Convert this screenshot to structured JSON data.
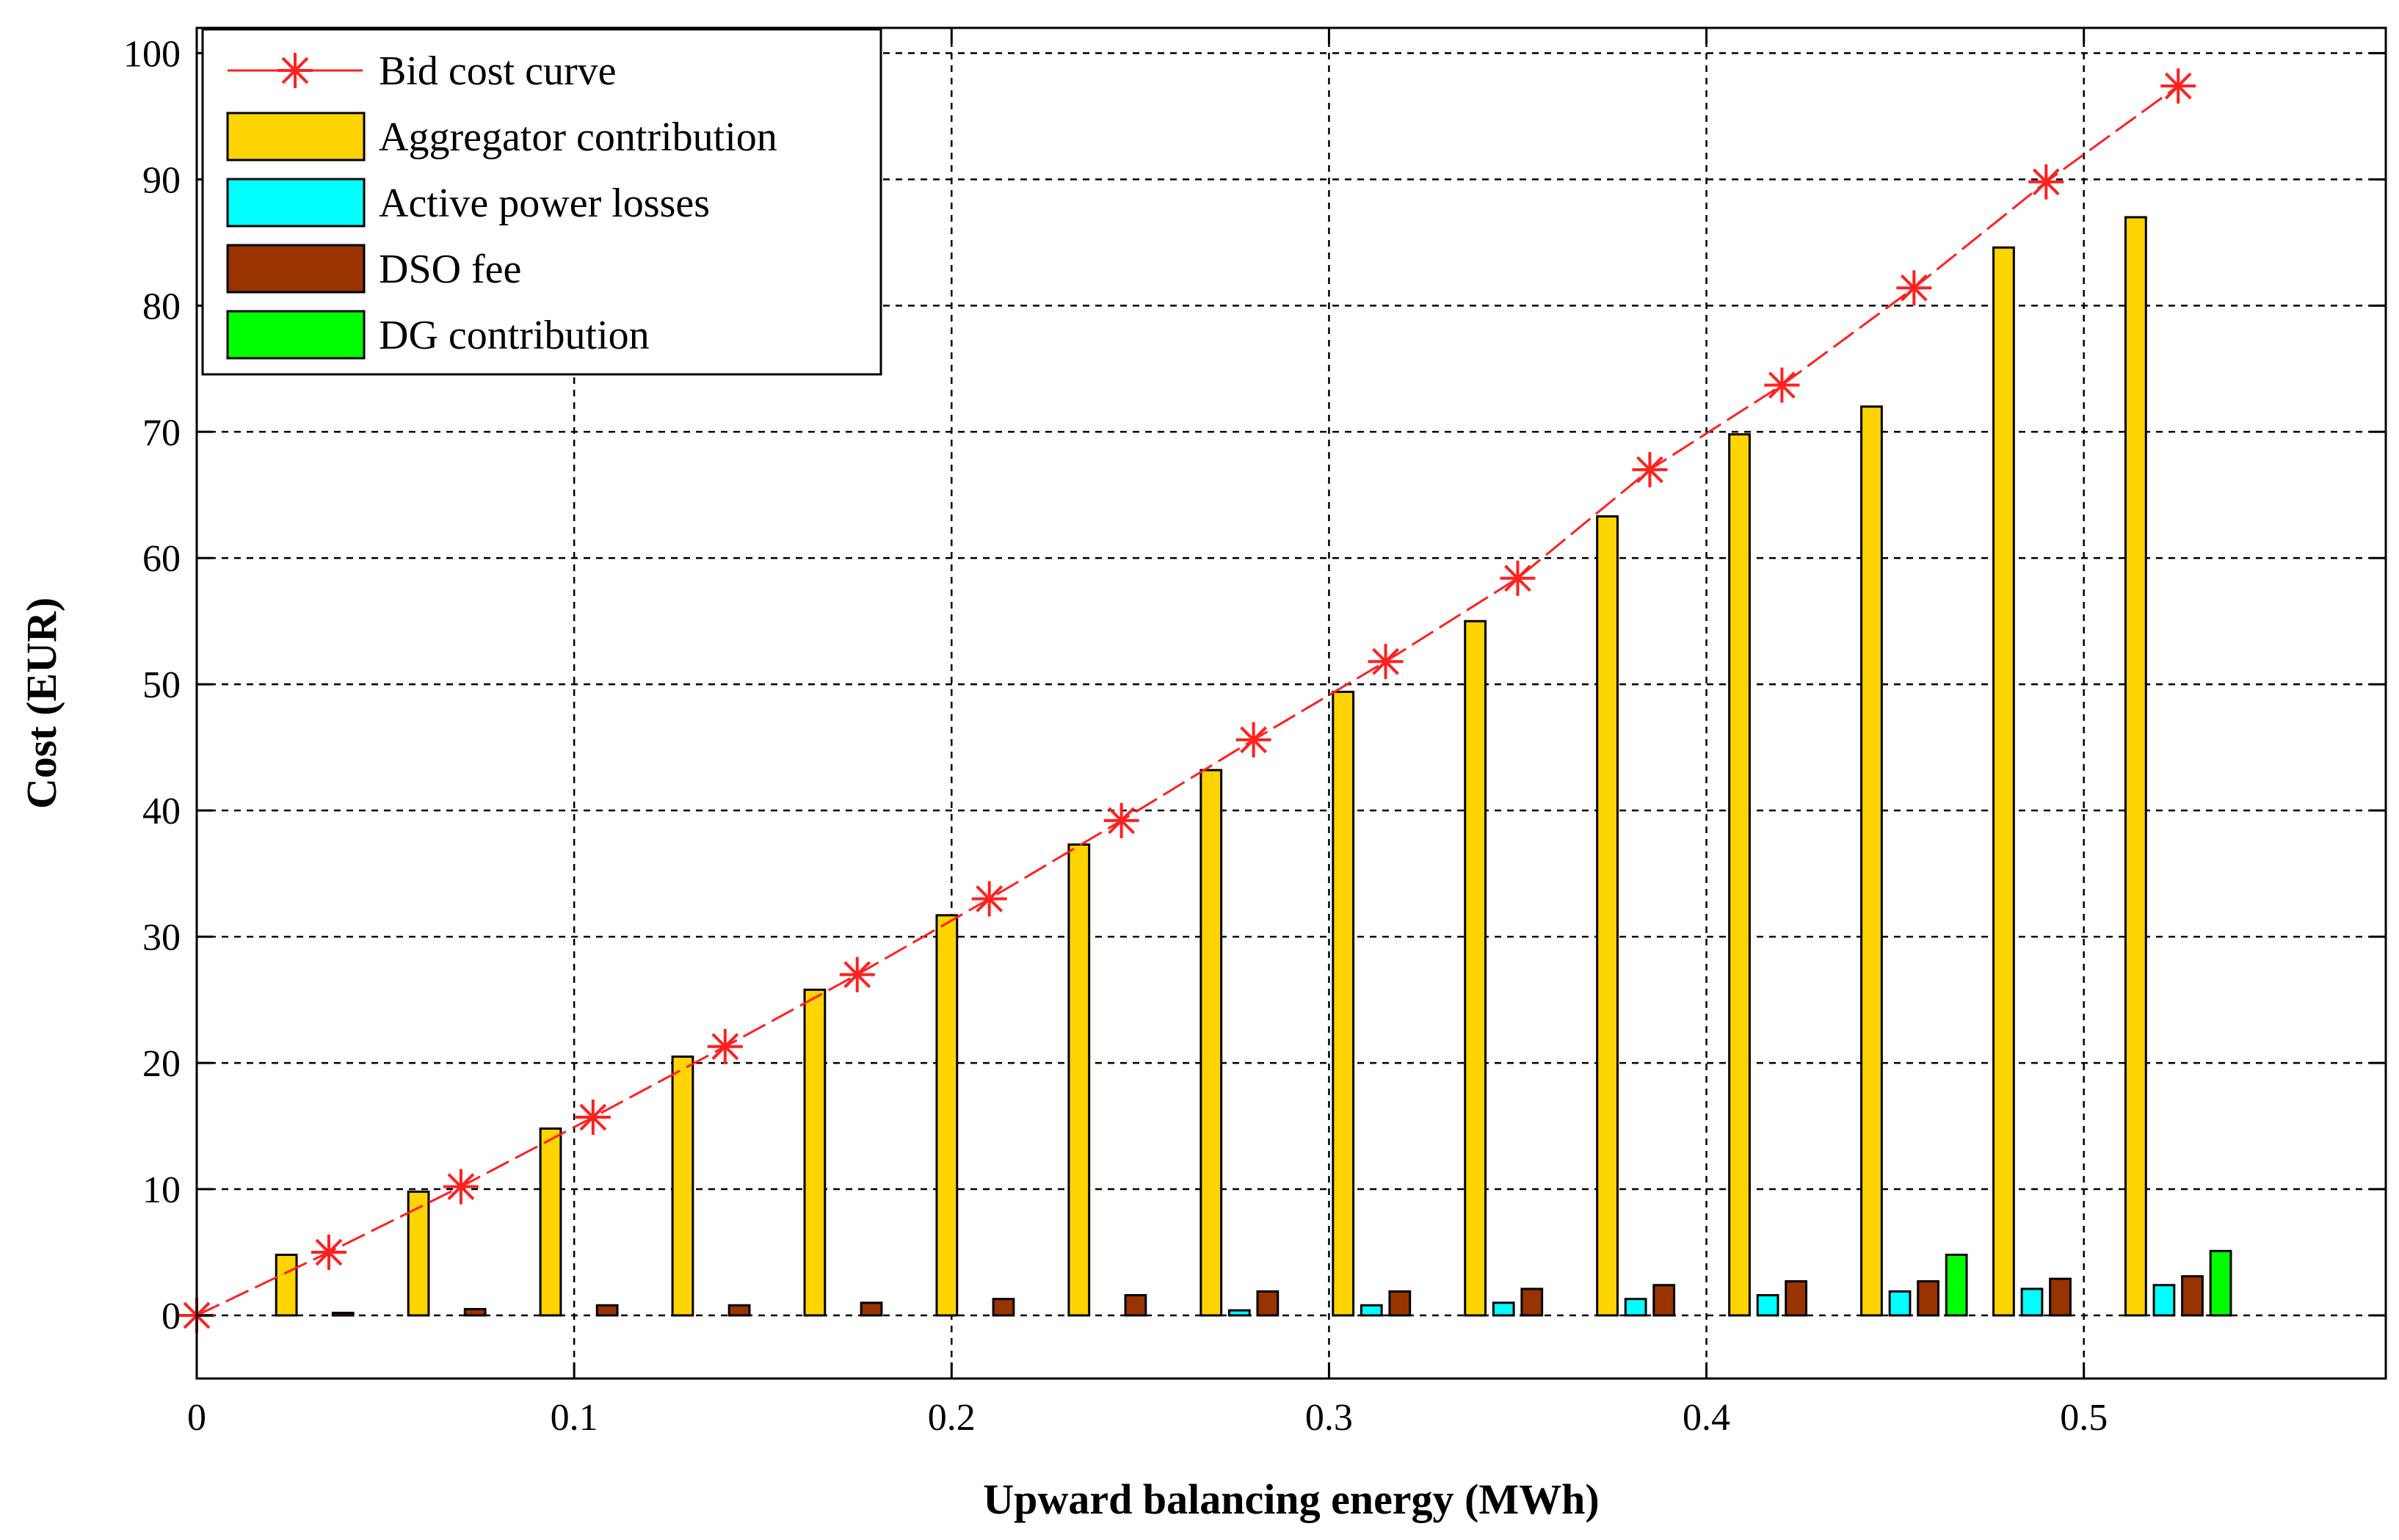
{
  "chart_data": {
    "type": "bar",
    "title": "",
    "xlabel": "Upward balancing energy (MWh)",
    "ylabel": "Cost (EUR)",
    "xlim": [
      0,
      0.58
    ],
    "ylim": [
      -5,
      102
    ],
    "x_ticks": [
      0,
      0.1,
      0.2,
      0.3,
      0.4,
      0.5
    ],
    "x_tick_labels": [
      "0",
      "0.1",
      "0.2",
      "0.3",
      "0.4",
      "0.5"
    ],
    "y_ticks": [
      0,
      10,
      20,
      30,
      40,
      50,
      60,
      70,
      80,
      90,
      100
    ],
    "y_tick_labels": [
      "0",
      "10",
      "20",
      "30",
      "40",
      "50",
      "60",
      "70",
      "80",
      "90",
      "100"
    ],
    "grid": true,
    "legend_position": "top-left",
    "x": [
      0.035,
      0.07,
      0.105,
      0.14,
      0.175,
      0.21,
      0.245,
      0.28,
      0.315,
      0.35,
      0.385,
      0.42,
      0.455,
      0.49,
      0.525
    ],
    "bar_group_width": 0.03,
    "line_series": {
      "name": "Bid cost curve",
      "color": "#ff2020",
      "marker": "asterisk",
      "x": [
        0,
        0.035,
        0.07,
        0.105,
        0.14,
        0.175,
        0.21,
        0.245,
        0.28,
        0.315,
        0.35,
        0.385,
        0.42,
        0.455,
        0.49,
        0.525
      ],
      "y": [
        0,
        5,
        10.2,
        15.7,
        21.3,
        27,
        33,
        39.2,
        45.6,
        51.8,
        58.4,
        67,
        73.7,
        81.4,
        89.8,
        97.4
      ]
    },
    "series": [
      {
        "name": "Aggregator contribution",
        "color": "#ffd400",
        "values": [
          4.8,
          9.8,
          14.8,
          20.5,
          25.8,
          31.7,
          37.3,
          43.2,
          49.4,
          55,
          63.3,
          69.8,
          72,
          84.6,
          87
        ]
      },
      {
        "name": "Active power losses",
        "color": "#00ffff",
        "values": [
          0,
          0,
          0,
          0,
          0,
          0,
          0,
          0.4,
          0.8,
          1,
          1.3,
          1.6,
          1.9,
          2.1,
          2.4
        ]
      },
      {
        "name": "DSO fee",
        "color": "#993300",
        "values": [
          0.2,
          0.5,
          0.8,
          0.8,
          1,
          1.3,
          1.6,
          1.9,
          1.9,
          2.1,
          2.4,
          2.7,
          2.7,
          2.9,
          3.1
        ]
      },
      {
        "name": "DG contribution",
        "color": "#00ff00",
        "values": [
          0,
          0,
          0,
          0,
          0,
          0,
          0,
          0,
          0,
          0,
          0,
          0,
          4.8,
          0,
          5.1
        ]
      }
    ]
  }
}
